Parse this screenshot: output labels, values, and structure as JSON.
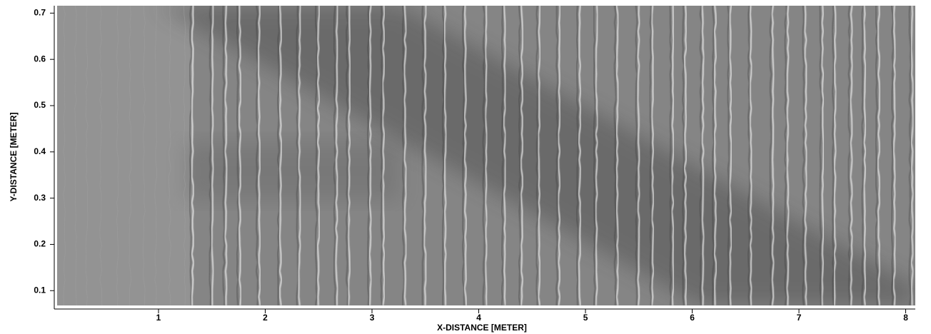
{
  "chart_data": {
    "type": "image",
    "xlabel": "X-DISTANCE [METER]",
    "ylabel": "Y-DISTANCE [METER]",
    "xlim": [
      0.05,
      8.09
    ],
    "xticks": [
      1,
      2,
      3,
      4,
      5,
      6,
      7,
      8
    ],
    "ylim": [
      0.068,
      0.716
    ],
    "yticks": [
      0.1,
      0.2,
      0.3,
      0.4,
      0.5,
      0.6,
      0.7
    ],
    "grid": false
  }
}
